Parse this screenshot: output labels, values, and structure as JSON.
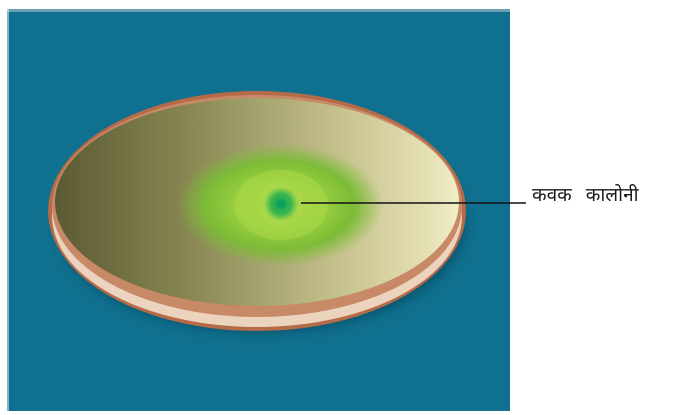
{
  "diagram": {
    "label": "कवक कालोनी",
    "colors": {
      "background": "#10708f",
      "dish_rim": "#b56a48",
      "agar_dark": "#5b5a33",
      "agar_light": "#f0ecc4",
      "colony_outer": "#8dc23a",
      "colony_center": "#17a34f"
    }
  }
}
